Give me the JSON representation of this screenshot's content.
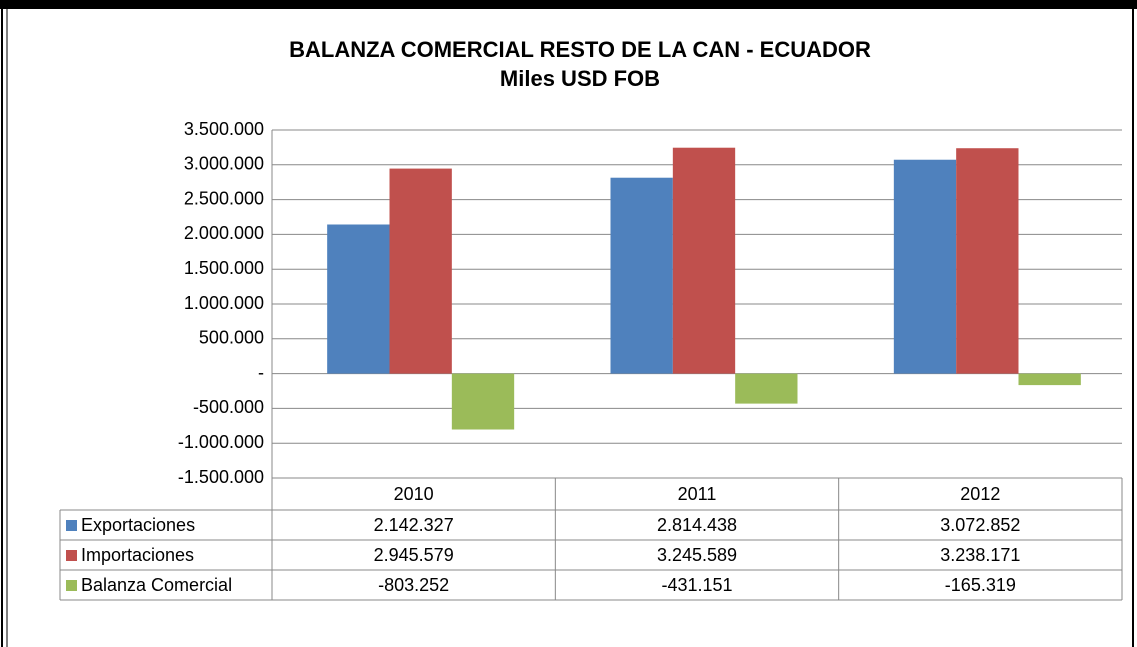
{
  "chart_data": {
    "type": "bar",
    "title": "BALANZA COMERCIAL RESTO DE LA CAN - ECUADOR",
    "subtitle": "Miles USD FOB",
    "categories": [
      "2010",
      "2011",
      "2012"
    ],
    "series": [
      {
        "name": "Exportaciones",
        "color": "#4f81bd",
        "values": [
          2142327,
          2814438,
          3072852
        ],
        "value_labels": [
          "2.142.327",
          "2.814.438",
          "3.072.852"
        ]
      },
      {
        "name": "Importaciones",
        "color": "#c0504d",
        "values": [
          2945579,
          3245589,
          3238171
        ],
        "value_labels": [
          "2.945.579",
          "3.245.589",
          "3.238.171"
        ]
      },
      {
        "name": "Balanza Comercial",
        "color": "#9bbb59",
        "values": [
          -803252,
          -431151,
          -165319
        ],
        "value_labels": [
          "-803.252",
          "-431.151",
          "-165.319"
        ]
      }
    ],
    "ylim": [
      -1500000,
      3500000
    ],
    "yticks": [
      {
        "value": -1500000,
        "label": "-1.500.000"
      },
      {
        "value": -1000000,
        "label": "-1.000.000"
      },
      {
        "value": -500000,
        "label": "-500.000"
      },
      {
        "value": 0,
        "label": "-"
      },
      {
        "value": 500000,
        "label": "500.000"
      },
      {
        "value": 1000000,
        "label": "1.000.000"
      },
      {
        "value": 1500000,
        "label": "1.500.000"
      },
      {
        "value": 2000000,
        "label": "2.000.000"
      },
      {
        "value": 2500000,
        "label": "2.500.000"
      },
      {
        "value": 3000000,
        "label": "3.000.000"
      },
      {
        "value": 3500000,
        "label": "3.500.000"
      }
    ],
    "grid": true
  }
}
